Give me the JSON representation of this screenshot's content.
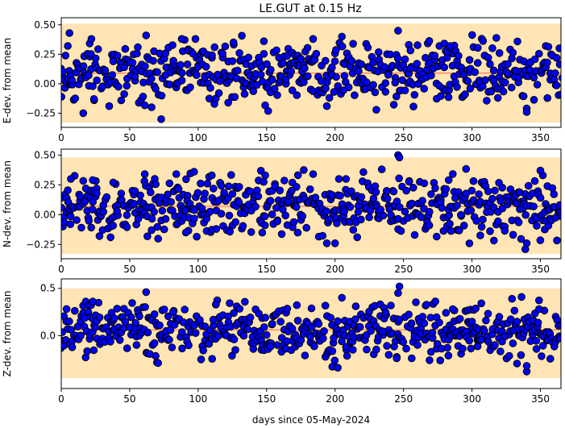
{
  "figure": {
    "title": "LE.GUT at 0.15 Hz",
    "xlabel": "days since 05-May-2024"
  },
  "colors": {
    "band": "#ffe4b5",
    "mean_line": "#ff6347",
    "marker_fill": "#0000ff",
    "marker_edge": "#000000"
  },
  "chart_data": [
    {
      "type": "scatter",
      "title": "LE.GUT at 0.15 Hz",
      "ylabel": "E-dev. from mean",
      "xlabel": "",
      "xlim": [
        0,
        365
      ],
      "ylim": [
        -0.37,
        0.56
      ],
      "xticks": [
        0,
        50,
        100,
        150,
        200,
        250,
        300,
        350
      ],
      "yticks": [
        -0.25,
        0.0,
        0.25,
        0.5
      ],
      "ytick_labels": [
        "−0.25",
        "0.00",
        "0.25",
        "0.50"
      ],
      "band": [
        -0.33,
        0.51
      ],
      "mean_line": 0.09,
      "grid": false,
      "seed": 11,
      "points": [
        [
          6,
          0.43
        ],
        [
          22,
          0.38
        ],
        [
          38,
          0.19
        ],
        [
          62,
          0.41
        ],
        [
          88,
          0.38
        ],
        [
          98,
          0.38
        ],
        [
          112,
          0.31
        ],
        [
          148,
          0.36
        ],
        [
          175,
          0.21
        ],
        [
          184,
          0.38
        ],
        [
          205,
          0.4
        ],
        [
          246,
          0.45
        ],
        [
          255,
          0.13
        ],
        [
          284,
          0.32
        ],
        [
          340,
          -0.21
        ],
        [
          340,
          -0.24
        ],
        [
          73,
          -0.3
        ],
        [
          35,
          -0.19
        ],
        [
          66,
          -0.2
        ],
        [
          194,
          -0.19
        ],
        [
          366,
          0.05
        ]
      ]
    },
    {
      "type": "scatter",
      "title": "",
      "ylabel": "N-dev. from mean",
      "xlabel": "",
      "xlim": [
        0,
        365
      ],
      "ylim": [
        -0.37,
        0.55
      ],
      "xticks": [
        0,
        50,
        100,
        150,
        200,
        250,
        300,
        350
      ],
      "yticks": [
        -0.25,
        0.0,
        0.25,
        0.5
      ],
      "ytick_labels": [
        "−0.25",
        "0.00",
        "0.25",
        "0.50"
      ],
      "band": [
        -0.33,
        0.48
      ],
      "mean_line": 0.07,
      "grid": false,
      "seed": 23,
      "points": [
        [
          7,
          0.3
        ],
        [
          23,
          0.29
        ],
        [
          38,
          0.27
        ],
        [
          61,
          0.34
        ],
        [
          84,
          0.34
        ],
        [
          97,
          0.36
        ],
        [
          110,
          0.33
        ],
        [
          149,
          0.33
        ],
        [
          184,
          0.34
        ],
        [
          246,
          0.5
        ],
        [
          247,
          0.48
        ],
        [
          208,
          0.3
        ],
        [
          350,
          0.37
        ],
        [
          340,
          -0.24
        ],
        [
          339,
          -0.29
        ],
        [
          66,
          -0.13
        ],
        [
          36,
          -0.19
        ],
        [
          91,
          -0.15
        ],
        [
          194,
          -0.24
        ],
        [
          200,
          -0.24
        ],
        [
          283,
          0.29
        ]
      ]
    },
    {
      "type": "scatter",
      "title": "",
      "ylabel": "Z-dev. from mean",
      "xlabel": "days since 05-May-2024",
      "xlim": [
        0,
        365
      ],
      "ylim": [
        -0.56,
        0.6
      ],
      "xticks": [
        0,
        50,
        100,
        150,
        200,
        250,
        300,
        350
      ],
      "yticks": [
        0.0,
        0.5
      ],
      "ytick_labels": [
        "0.0",
        "0.5"
      ],
      "band": [
        -0.45,
        0.5
      ],
      "mean_line": 0.06,
      "grid": false,
      "seed": 37,
      "points": [
        [
          62,
          0.46
        ],
        [
          247,
          0.52
        ],
        [
          246,
          0.45
        ],
        [
          205,
          0.4
        ],
        [
          23,
          0.36
        ],
        [
          340,
          -0.38
        ],
        [
          340,
          -0.32
        ],
        [
          198,
          -0.33
        ],
        [
          202,
          -0.34
        ],
        [
          178,
          -0.21
        ],
        [
          245,
          -0.24
        ],
        [
          256,
          -0.24
        ],
        [
          286,
          0.28
        ],
        [
          349,
          0.28
        ],
        [
          113,
          0.33
        ]
      ]
    }
  ]
}
